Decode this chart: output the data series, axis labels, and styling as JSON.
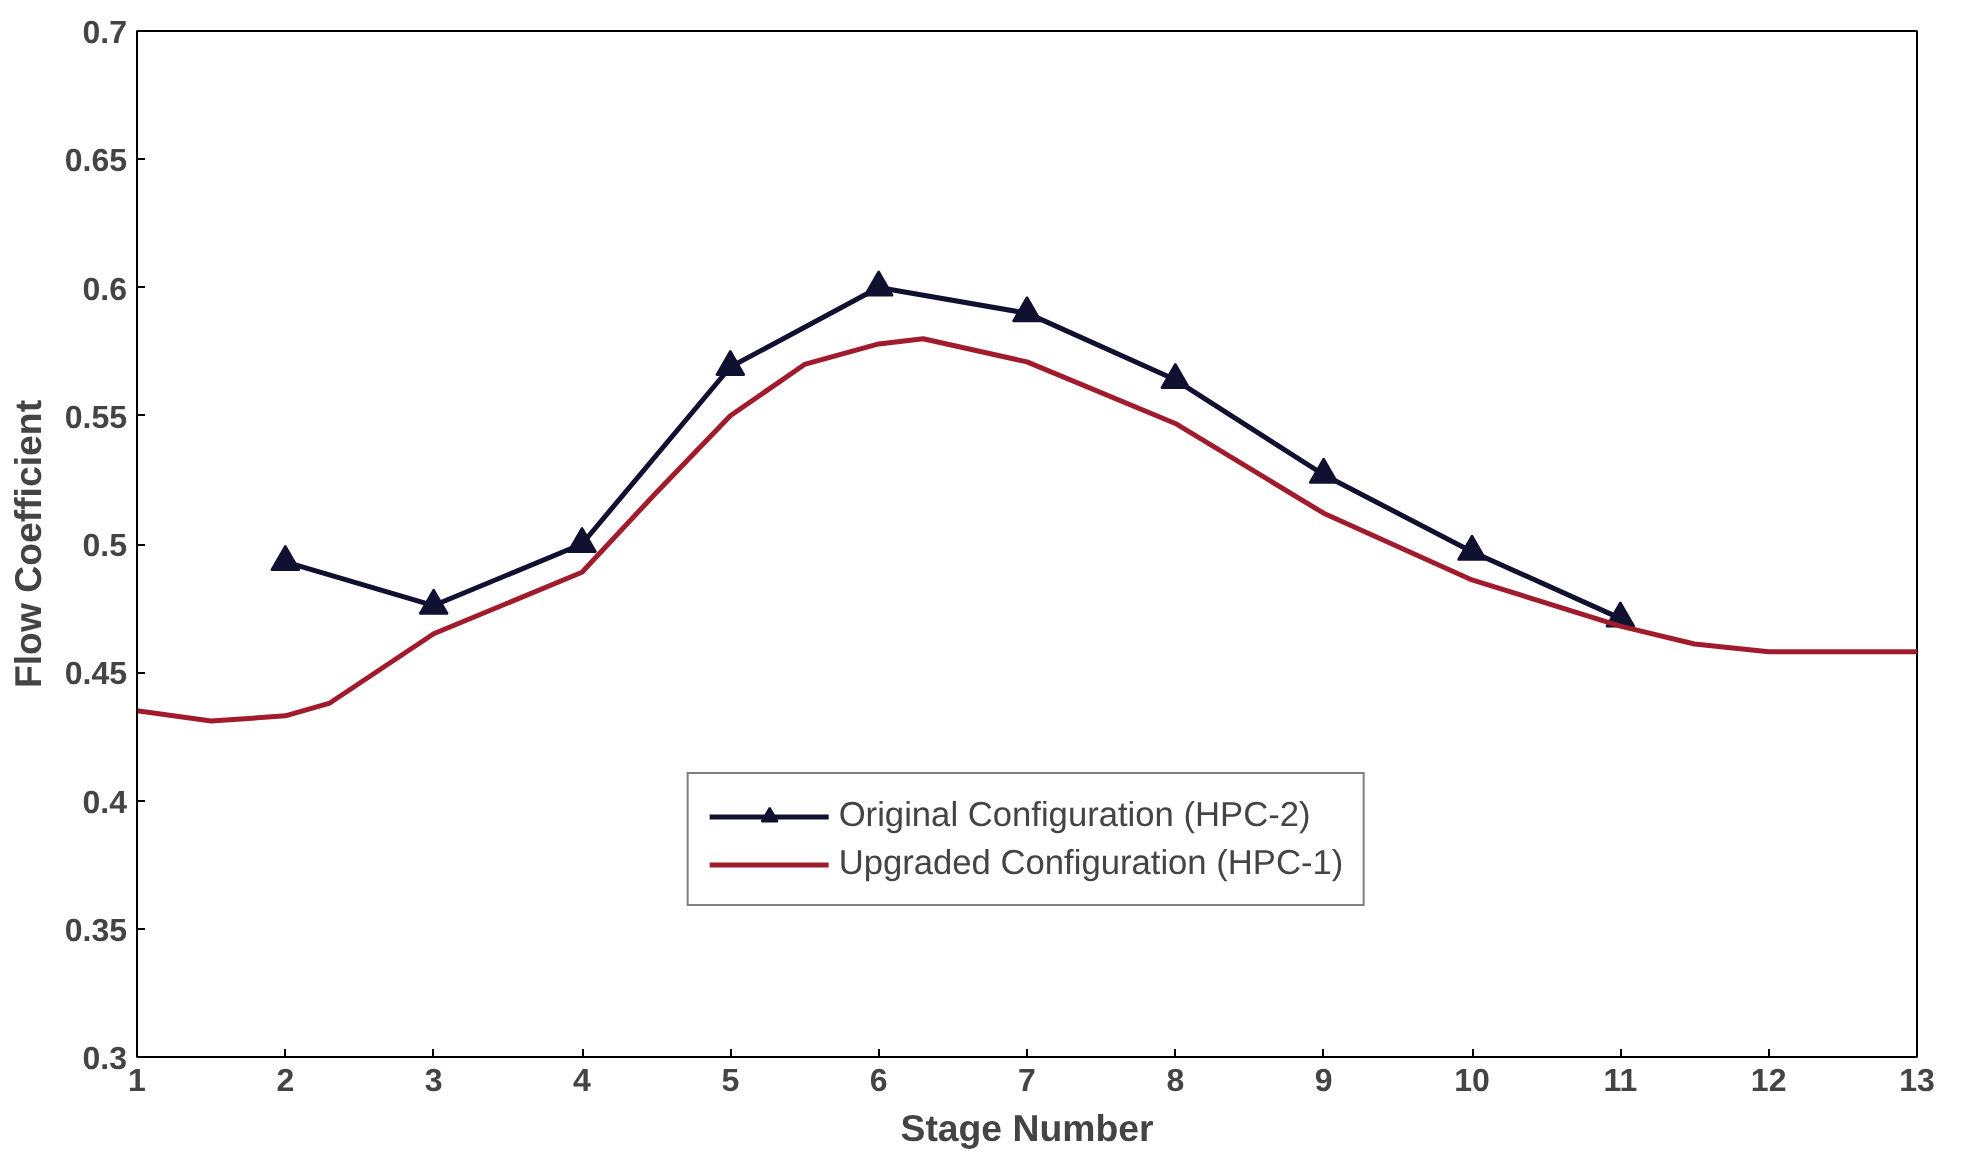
{
  "chart_data": {
    "type": "line",
    "xlabel": "Stage Number",
    "ylabel": "Flow Coefficient",
    "xlim": [
      1,
      13
    ],
    "ylim": [
      0.3,
      0.7
    ],
    "xticks": [
      1,
      2,
      3,
      4,
      5,
      6,
      7,
      8,
      9,
      10,
      11,
      12,
      13
    ],
    "yticks": [
      0.3,
      0.35,
      0.4,
      0.45,
      0.5,
      0.55,
      0.6,
      0.65,
      0.7
    ],
    "grid": false,
    "legend": "bottom",
    "series": [
      {
        "name": "Original Configuration (HPC-2)",
        "color": "#101030",
        "marker": "triangle",
        "x": [
          2,
          3,
          4,
          5,
          6,
          7,
          8,
          9,
          10,
          11
        ],
        "values": [
          0.493,
          0.476,
          0.5,
          0.569,
          0.6,
          0.59,
          0.564,
          0.527,
          0.497,
          0.471
        ]
      },
      {
        "name": "Upgraded Configuration (HPC-1)",
        "color": "#a01c2c",
        "marker": "none",
        "x": [
          1,
          1.5,
          2,
          2.3,
          3,
          4,
          4.5,
          5,
          5.5,
          6,
          6.3,
          7,
          8,
          9,
          10,
          11,
          11.5,
          12,
          13
        ],
        "values": [
          0.435,
          0.431,
          0.433,
          0.438,
          0.465,
          0.489,
          0.52,
          0.55,
          0.57,
          0.578,
          0.58,
          0.571,
          0.547,
          0.512,
          0.486,
          0.468,
          0.461,
          0.458,
          0.458
        ]
      }
    ]
  }
}
